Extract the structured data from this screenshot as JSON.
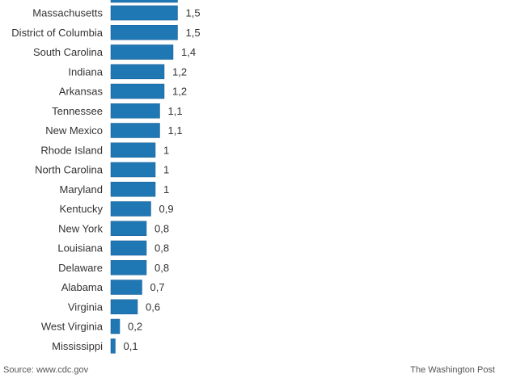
{
  "chart_data": {
    "type": "bar",
    "orientation": "horizontal",
    "categories": [
      "Massachusetts",
      "District of Columbia",
      "South Carolina",
      "Indiana",
      "Arkansas",
      "Tennessee",
      "New Mexico",
      "Rhode Island",
      "North Carolina",
      "Maryland",
      "Kentucky",
      "New York",
      "Louisiana",
      "Delaware",
      "Alabama",
      "Virginia",
      "West Virginia",
      "Mississippi"
    ],
    "values": [
      1.5,
      1.5,
      1.4,
      1.2,
      1.2,
      1.1,
      1.1,
      1.0,
      1.0,
      1.0,
      0.9,
      0.8,
      0.8,
      0.8,
      0.7,
      0.6,
      0.2,
      0.1
    ],
    "value_labels": [
      "1,5",
      "1,5",
      "1,4",
      "1,2",
      "1,2",
      "1,1",
      "1,1",
      "1",
      "1",
      "1",
      "0,9",
      "0,8",
      "0,8",
      "0,8",
      "0,7",
      "0,6",
      "0,2",
      "0,1"
    ],
    "bar_color": "#1f77b4",
    "bar_border_color": "#1a5f93",
    "grid": false,
    "legend": "none"
  },
  "footer": {
    "source": "Source: www.cdc.gov",
    "credit": "The Washington Post"
  }
}
